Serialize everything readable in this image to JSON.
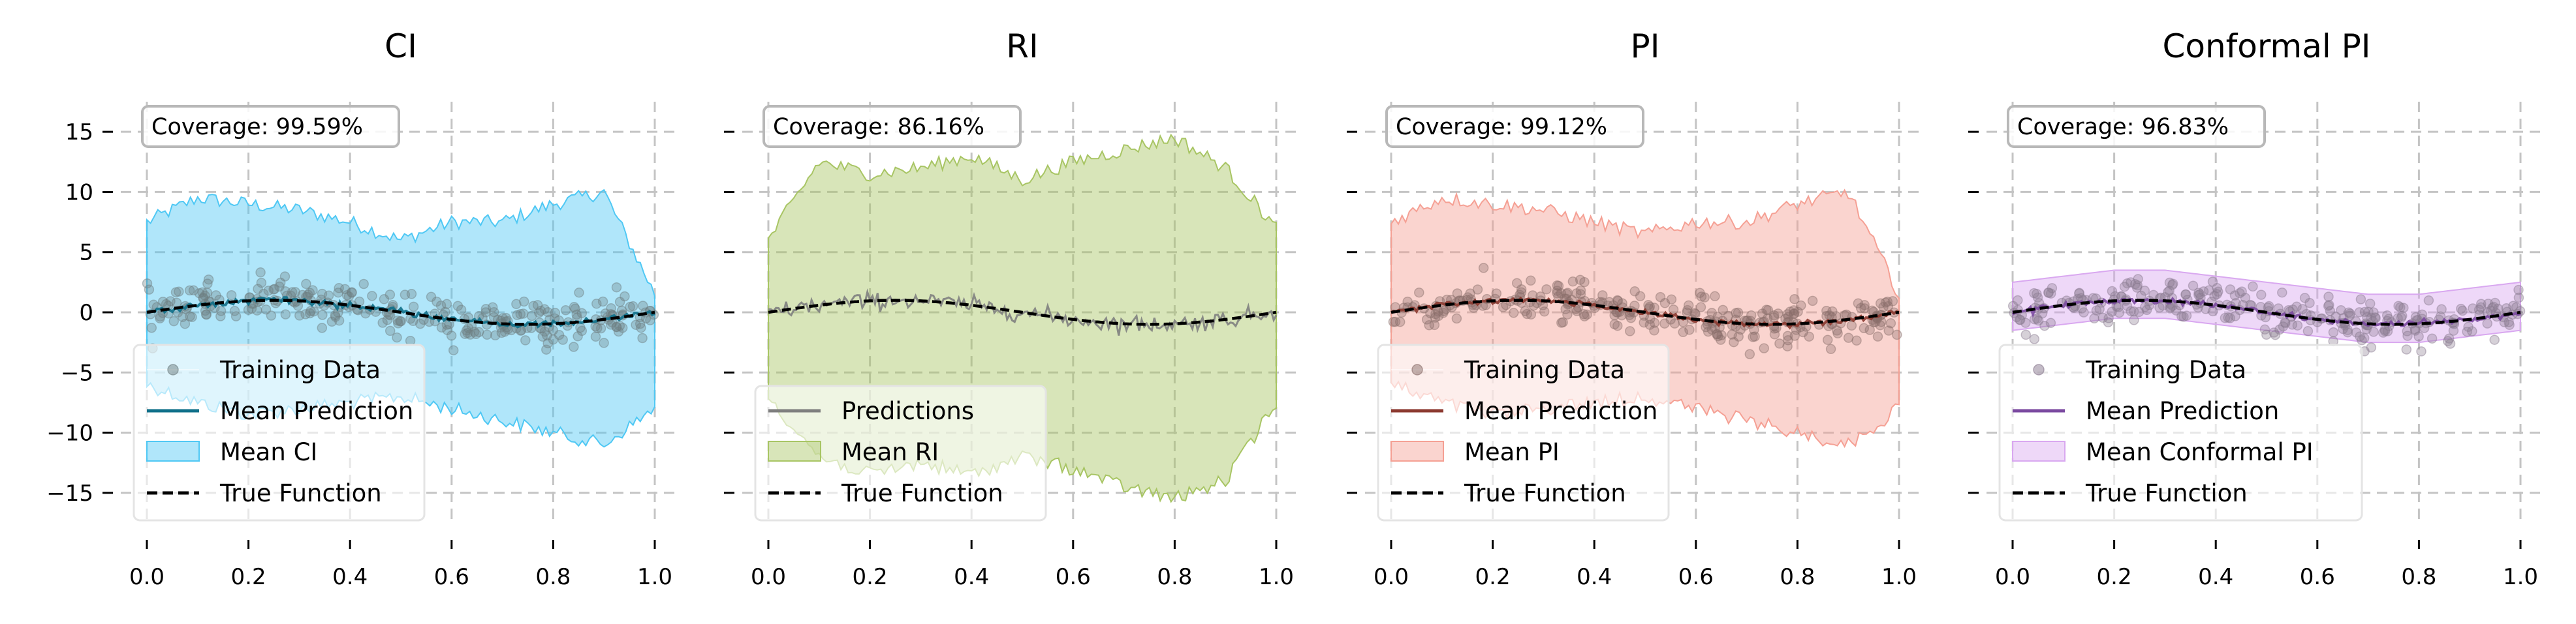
{
  "chart_data": [
    {
      "type": "area",
      "title": "CI",
      "coverage_text": "Coverage: 99.59%",
      "xlim": [
        0.0,
        1.0
      ],
      "ylim": [
        -17.5,
        17.5
      ],
      "xticks": [
        0.0,
        0.2,
        0.4,
        0.6,
        0.8,
        1.0
      ],
      "xtick_labels": [
        "0.0",
        "0.2",
        "0.4",
        "0.6",
        "0.8",
        "1.0"
      ],
      "yticks": [
        15,
        10,
        5,
        0,
        -5,
        -10,
        -15
      ],
      "ytick_labels": [
        "15",
        "10",
        "5",
        "0",
        "−5",
        "−10",
        "−15"
      ],
      "show_yticklabels": true,
      "band_color": "#4fc8f4",
      "point_color": "#6e7e80",
      "line_color": "#10708a",
      "band_upper": [
        [
          0.0,
          7.5
        ],
        [
          0.1,
          9.5
        ],
        [
          0.2,
          9.0
        ],
        [
          0.3,
          8.5
        ],
        [
          0.4,
          7.5
        ],
        [
          0.5,
          6.0
        ],
        [
          0.6,
          7.5
        ],
        [
          0.7,
          7.5
        ],
        [
          0.8,
          9.0
        ],
        [
          0.9,
          10.0
        ],
        [
          1.0,
          1.5
        ]
      ],
      "band_lower": [
        [
          0.0,
          -6.0
        ],
        [
          0.1,
          -7.5
        ],
        [
          0.2,
          -8.5
        ],
        [
          0.3,
          -8.0
        ],
        [
          0.4,
          -7.5
        ],
        [
          0.5,
          -7.0
        ],
        [
          0.6,
          -8.0
        ],
        [
          0.7,
          -9.0
        ],
        [
          0.8,
          -10.0
        ],
        [
          0.9,
          -11.0
        ],
        [
          1.0,
          -8.0
        ]
      ],
      "points_amp": 1.6,
      "legend": [
        {
          "kind": "marker",
          "label": "Training Data"
        },
        {
          "kind": "line",
          "label": "Mean Prediction"
        },
        {
          "kind": "patch",
          "label": "Mean CI"
        },
        {
          "kind": "dash",
          "label": "True Function"
        }
      ]
    },
    {
      "type": "area",
      "title": "RI",
      "coverage_text": "Coverage: 86.16%",
      "xlim": [
        0.0,
        1.0
      ],
      "ylim": [
        -17.5,
        17.5
      ],
      "xticks": [
        0.0,
        0.2,
        0.4,
        0.6,
        0.8,
        1.0
      ],
      "xtick_labels": [
        "0.0",
        "0.2",
        "0.4",
        "0.6",
        "0.8",
        "1.0"
      ],
      "yticks": [
        15,
        10,
        5,
        0,
        -5,
        -10,
        -15
      ],
      "ytick_labels": [
        "15",
        "10",
        "5",
        "0",
        "−5",
        "−10",
        "−15"
      ],
      "show_yticklabels": false,
      "band_color": "#a8c564",
      "point_color": "#7f7f7f",
      "line_color": "#7f7f7f",
      "band_upper": [
        [
          0.0,
          6.0
        ],
        [
          0.1,
          12.5
        ],
        [
          0.2,
          11.5
        ],
        [
          0.3,
          12.0
        ],
        [
          0.4,
          13.0
        ],
        [
          0.5,
          11.0
        ],
        [
          0.6,
          12.5
        ],
        [
          0.7,
          13.5
        ],
        [
          0.8,
          14.5
        ],
        [
          0.9,
          12.0
        ],
        [
          1.0,
          7.0
        ]
      ],
      "band_lower": [
        [
          0.0,
          -7.0
        ],
        [
          0.1,
          -12.0
        ],
        [
          0.2,
          -13.5
        ],
        [
          0.3,
          -12.5
        ],
        [
          0.4,
          -13.5
        ],
        [
          0.5,
          -12.0
        ],
        [
          0.6,
          -13.0
        ],
        [
          0.7,
          -14.5
        ],
        [
          0.8,
          -15.5
        ],
        [
          0.9,
          -14.0
        ],
        [
          1.0,
          -7.5
        ]
      ],
      "points_amp": 0,
      "legend": [
        {
          "kind": "line",
          "label": "Predictions"
        },
        {
          "kind": "patch",
          "label": "Mean RI"
        },
        {
          "kind": "dash",
          "label": "True Function"
        }
      ]
    },
    {
      "type": "area",
      "title": "PI",
      "coverage_text": "Coverage: 99.12%",
      "xlim": [
        0.0,
        1.0
      ],
      "ylim": [
        -17.5,
        17.5
      ],
      "xticks": [
        0.0,
        0.2,
        0.4,
        0.6,
        0.8,
        1.0
      ],
      "xtick_labels": [
        "0.0",
        "0.2",
        "0.4",
        "0.6",
        "0.8",
        "1.0"
      ],
      "yticks": [
        15,
        10,
        5,
        0,
        -5,
        -10,
        -15
      ],
      "ytick_labels": [
        "15",
        "10",
        "5",
        "0",
        "−5",
        "−10",
        "−15"
      ],
      "show_yticklabels": false,
      "band_color": "#f5a094",
      "point_color": "#8a6e6a",
      "line_color": "#8c3a30",
      "band_upper": [
        [
          0.0,
          7.5
        ],
        [
          0.1,
          9.5
        ],
        [
          0.2,
          9.0
        ],
        [
          0.3,
          8.5
        ],
        [
          0.4,
          7.5
        ],
        [
          0.5,
          6.5
        ],
        [
          0.6,
          7.5
        ],
        [
          0.7,
          7.5
        ],
        [
          0.8,
          9.0
        ],
        [
          0.9,
          10.0
        ],
        [
          1.0,
          1.5
        ]
      ],
      "band_lower": [
        [
          0.0,
          -6.0
        ],
        [
          0.1,
          -7.5
        ],
        [
          0.2,
          -8.5
        ],
        [
          0.3,
          -8.0
        ],
        [
          0.4,
          -7.5
        ],
        [
          0.5,
          -7.0
        ],
        [
          0.6,
          -8.0
        ],
        [
          0.7,
          -9.0
        ],
        [
          0.8,
          -10.0
        ],
        [
          0.9,
          -11.0
        ],
        [
          1.0,
          -8.0
        ]
      ],
      "points_amp": 1.6,
      "legend": [
        {
          "kind": "marker",
          "label": "Training Data"
        },
        {
          "kind": "line",
          "label": "Mean Prediction"
        },
        {
          "kind": "patch",
          "label": "Mean PI"
        },
        {
          "kind": "dash",
          "label": "True Function"
        }
      ]
    },
    {
      "type": "area",
      "title": "Conformal PI",
      "coverage_text": "Coverage: 96.83%",
      "xlim": [
        0.0,
        1.0
      ],
      "ylim": [
        -17.5,
        17.5
      ],
      "xticks": [
        0.0,
        0.2,
        0.4,
        0.6,
        0.8,
        1.0
      ],
      "xtick_labels": [
        "0.0",
        "0.2",
        "0.4",
        "0.6",
        "0.8",
        "1.0"
      ],
      "yticks": [
        15,
        10,
        5,
        0,
        -5,
        -10,
        -15
      ],
      "ytick_labels": [
        "15",
        "10",
        "5",
        "0",
        "−5",
        "−10",
        "−15"
      ],
      "show_yticklabels": false,
      "band_color": "#d9a8f0",
      "point_color": "#8a7a90",
      "line_color": "#7b4aa0",
      "band_upper": [
        [
          0.0,
          2.5
        ],
        [
          0.1,
          3.0
        ],
        [
          0.2,
          3.5
        ],
        [
          0.3,
          3.5
        ],
        [
          0.4,
          3.0
        ],
        [
          0.5,
          2.5
        ],
        [
          0.6,
          2.0
        ],
        [
          0.7,
          1.5
        ],
        [
          0.8,
          1.5
        ],
        [
          0.9,
          2.0
        ],
        [
          1.0,
          2.5
        ]
      ],
      "band_lower": [
        [
          0.0,
          -1.5
        ],
        [
          0.1,
          -1.0
        ],
        [
          0.2,
          -0.5
        ],
        [
          0.3,
          -0.5
        ],
        [
          0.4,
          -1.0
        ],
        [
          0.5,
          -1.5
        ],
        [
          0.6,
          -2.0
        ],
        [
          0.7,
          -2.5
        ],
        [
          0.8,
          -2.5
        ],
        [
          0.9,
          -2.0
        ],
        [
          1.0,
          -1.5
        ]
      ],
      "points_amp": 1.6,
      "legend": [
        {
          "kind": "marker",
          "label": "Training Data"
        },
        {
          "kind": "line",
          "label": "Mean Prediction"
        },
        {
          "kind": "patch",
          "label": "Mean Conformal PI"
        },
        {
          "kind": "dash",
          "label": "True Function"
        }
      ]
    }
  ]
}
